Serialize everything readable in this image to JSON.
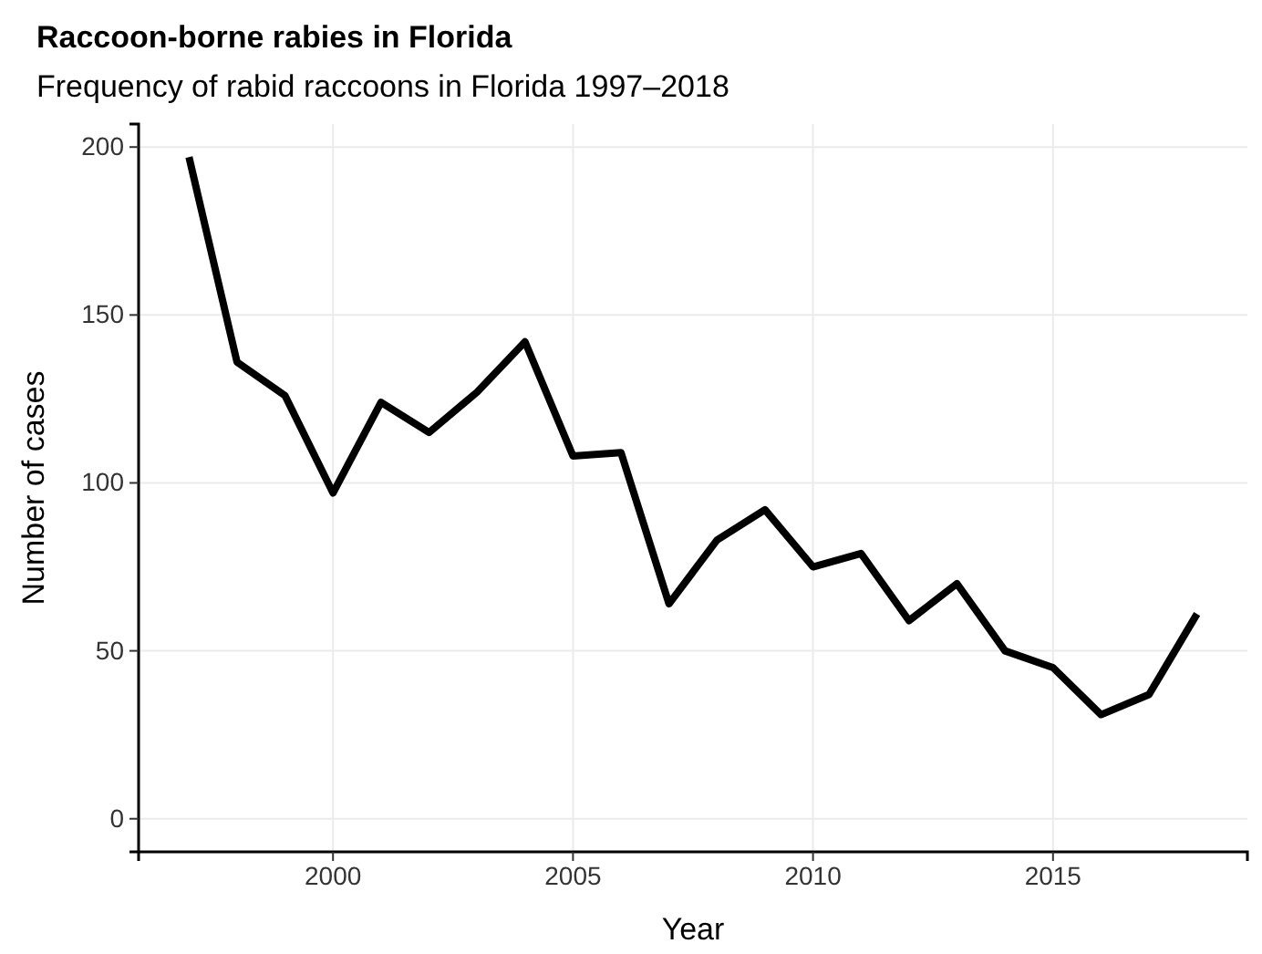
{
  "chart_data": {
    "type": "line",
    "title": "Raccoon-borne rabies in Florida",
    "subtitle": "Frequency of rabid raccoons in Florida 1997–2018",
    "xlabel": "Year",
    "ylabel": "Number of cases",
    "x": [
      1997,
      1998,
      1999,
      2000,
      2001,
      2002,
      2003,
      2004,
      2005,
      2006,
      2007,
      2008,
      2009,
      2010,
      2011,
      2012,
      2013,
      2014,
      2015,
      2016,
      2017,
      2018
    ],
    "series": [
      {
        "color": "#000000",
        "values": [
          197,
          136,
          126,
          97,
          124,
          115,
          127,
          142,
          108,
          109,
          64,
          83,
          92,
          75,
          79,
          59,
          70,
          50,
          45,
          31,
          37,
          61
        ]
      }
    ],
    "xlim": [
      1995.95,
      2019.05
    ],
    "xticks": [
      2000,
      2005,
      2010,
      2015
    ],
    "ylim": [
      -9.85,
      206.85
    ],
    "yticks": [
      0,
      50,
      100,
      150,
      200
    ],
    "grid": true,
    "marker": "none",
    "line_style": "solid"
  }
}
